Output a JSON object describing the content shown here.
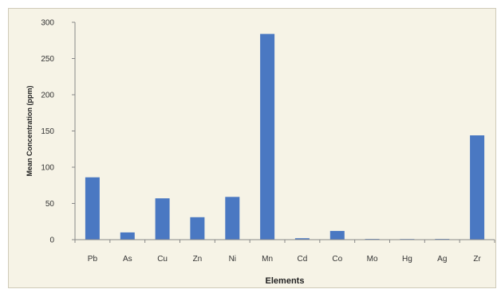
{
  "chart_data": {
    "type": "bar",
    "title": "",
    "xlabel": "Elements",
    "ylabel": "Mean Concentration (ppm)",
    "categories": [
      "Pb",
      "As",
      "Cu",
      "Zn",
      "Ni",
      "Mn",
      "Cd",
      "Co",
      "Mo",
      "Hg",
      "Ag",
      "Zr"
    ],
    "values": [
      86,
      10,
      57,
      31,
      59,
      284,
      2,
      12,
      1,
      0,
      1,
      144
    ],
    "ylim": [
      0,
      300
    ],
    "yticks": [
      0,
      50,
      100,
      150,
      200,
      250,
      300
    ],
    "grid": false,
    "legend": "none",
    "bar_color": "#4a78c2",
    "axis_color": "#888888"
  }
}
